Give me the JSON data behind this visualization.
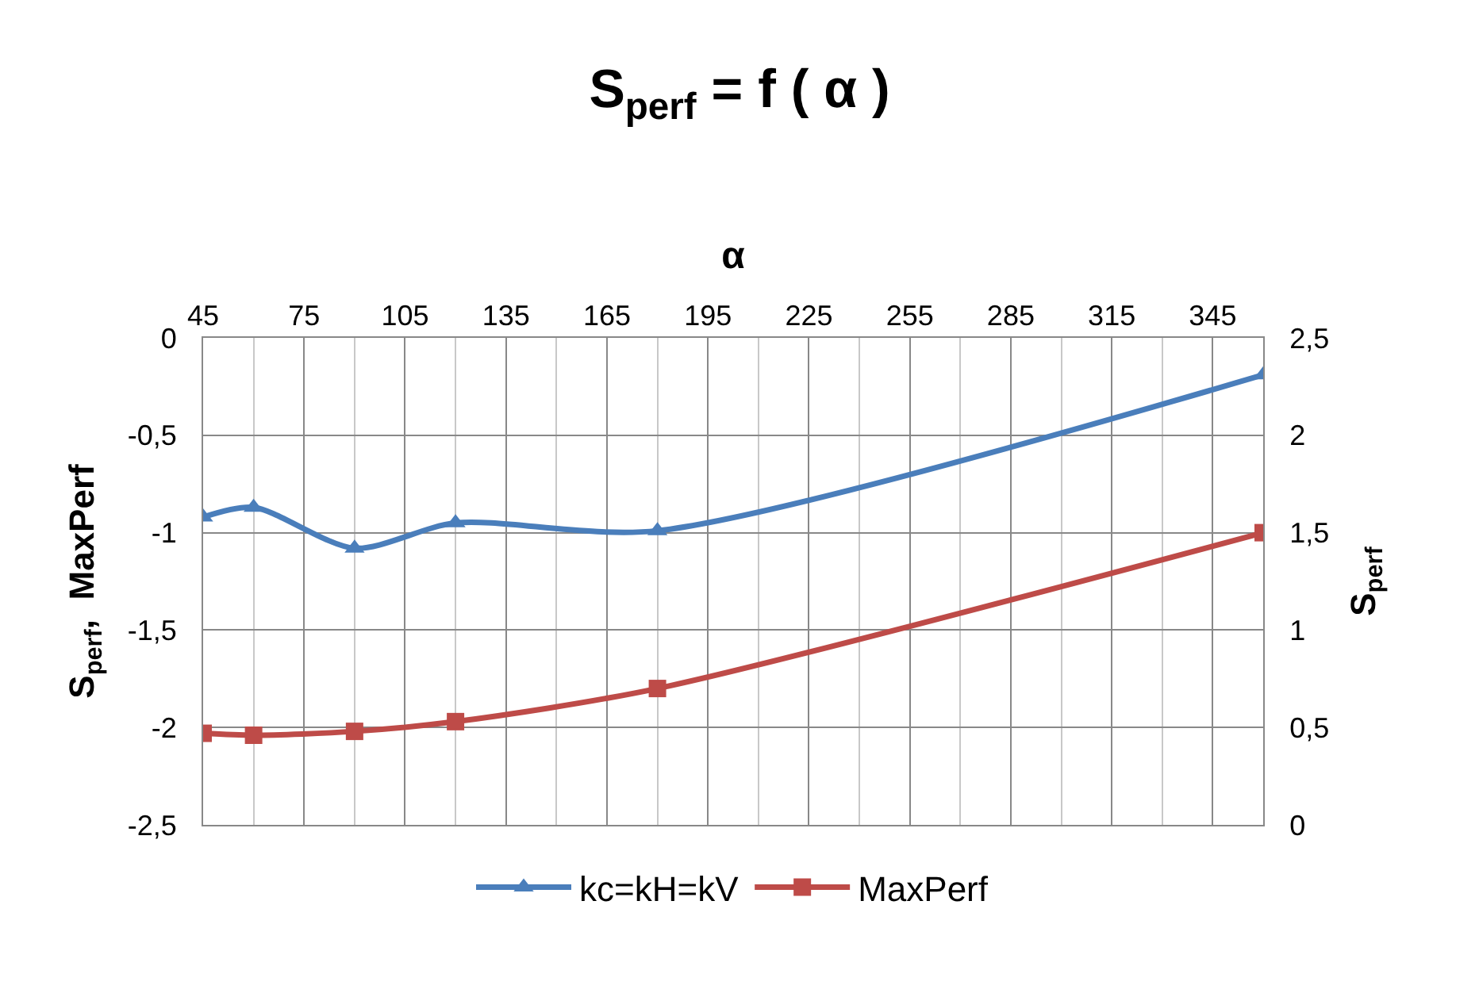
{
  "chart_data": {
    "type": "line",
    "title": "S$_{perf}$ = f ( α )",
    "xlabel": "α",
    "ylabel": "S$_{perf}$,  MaxPerf",
    "y2label": "S$_{perf}$",
    "x": [
      45,
      60,
      90,
      120,
      180,
      360
    ],
    "series": [
      {
        "name": "kc=kH=kV",
        "color": "#4a7ebb",
        "marker": "triangle",
        "values": [
          -0.92,
          -0.87,
          -1.08,
          -0.95,
          -0.99,
          -0.19
        ]
      },
      {
        "name": "MaxPerf",
        "color": "#be4b48",
        "marker": "square",
        "axis": "y2",
        "values": [
          0.47,
          0.46,
          0.48,
          0.53,
          0.7,
          1.5
        ]
      }
    ],
    "xlim": [
      45,
      360
    ],
    "xticks": [
      45,
      75,
      105,
      135,
      165,
      195,
      225,
      255,
      285,
      315,
      345
    ],
    "ylim": [
      -2.5,
      0
    ],
    "yticks": [
      {
        "value": -2.5,
        "label": "-2,5"
      },
      -2,
      {
        "value": -1.5,
        "label": "-1,5"
      },
      -1,
      {
        "value": -0.5,
        "label": "-0,5"
      },
      0
    ],
    "y2lim": [
      0,
      2.5
    ],
    "y2ticks": [
      0,
      {
        "value": 0.5,
        "label": "0,5"
      },
      1,
      {
        "value": 1.5,
        "label": "1,5"
      },
      2,
      {
        "value": 2.5,
        "label": "2,5"
      }
    ],
    "grid": true,
    "legend": "bottom",
    "line_style": "solid"
  }
}
